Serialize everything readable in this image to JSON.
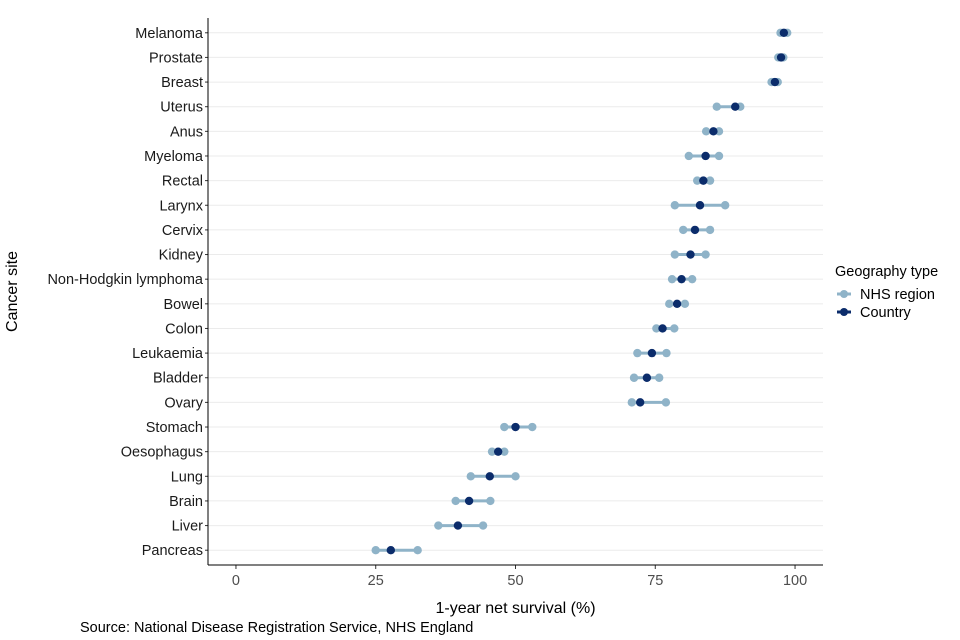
{
  "chart_data": {
    "type": "dumbbell",
    "ylabel": "Cancer site",
    "xlabel": "1-year net survival (%)",
    "xlim": [
      -5,
      105
    ],
    "xticks": [
      0,
      25,
      50,
      75,
      100
    ],
    "grid": "horizontal major",
    "legend": {
      "title": "Geography type",
      "position": "right",
      "entries": [
        "NHS region",
        "Country"
      ]
    },
    "colors": {
      "nhs_region": "#8fb3c8",
      "country": "#0b2c6b",
      "range_line": "#8fb3c8"
    },
    "categories": [
      "Melanoma",
      "Prostate",
      "Breast",
      "Uterus",
      "Anus",
      "Myeloma",
      "Rectal",
      "Larynx",
      "Cervix",
      "Kidney",
      "Non-Hodgkin lymphoma",
      "Bowel",
      "Colon",
      "Leukaemia",
      "Bladder",
      "Ovary",
      "Stomach",
      "Oesophagus",
      "Lung",
      "Brain",
      "Liver",
      "Pancreas"
    ],
    "series": [
      {
        "name": "NHS region",
        "role": "range",
        "min": [
          97.4,
          97.0,
          95.8,
          86.0,
          84.1,
          81.0,
          82.5,
          78.5,
          80.0,
          78.5,
          78.0,
          77.5,
          75.2,
          71.8,
          71.2,
          70.8,
          48.0,
          45.8,
          42.0,
          39.3,
          36.2,
          25.0
        ],
        "max": [
          98.6,
          97.9,
          96.9,
          90.2,
          86.4,
          86.4,
          84.8,
          87.5,
          84.8,
          84.0,
          81.6,
          80.3,
          78.4,
          77.0,
          75.7,
          76.9,
          53.0,
          48.0,
          50.0,
          45.5,
          44.2,
          32.5
        ]
      },
      {
        "name": "Country",
        "role": "point",
        "values": [
          98.0,
          97.5,
          96.4,
          89.3,
          85.4,
          84.0,
          83.6,
          83.0,
          82.1,
          81.3,
          79.7,
          78.9,
          76.3,
          74.4,
          73.5,
          72.3,
          50.0,
          46.9,
          45.4,
          41.7,
          39.7,
          27.7
        ]
      }
    ],
    "source": "Source: National Disease Registration Service, NHS England"
  }
}
